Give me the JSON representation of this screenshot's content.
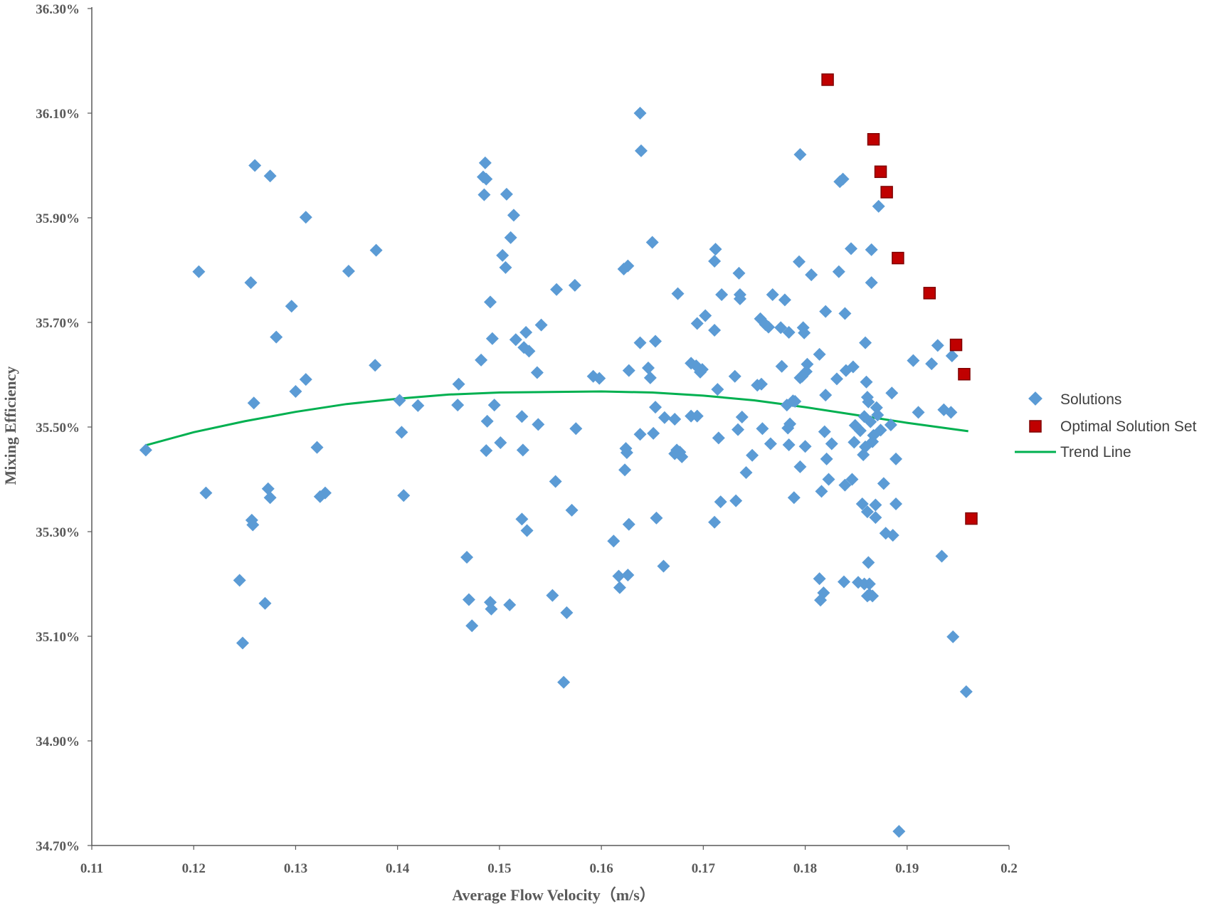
{
  "chart_data": {
    "type": "scatter",
    "xlabel": "Average Flow Velocity（m/s）",
    "ylabel": "Mixing Efficiency",
    "xlim": [
      0.11,
      0.2
    ],
    "ylim": [
      34.7,
      36.3
    ],
    "x_ticks": [
      0.11,
      0.12,
      0.13,
      0.14,
      0.15,
      0.16,
      0.17,
      0.18,
      0.19,
      0.2
    ],
    "x_tick_labels": [
      "0.11",
      "0.12",
      "0.13",
      "0.14",
      "0.15",
      "0.16",
      "0.17",
      "0.18",
      "0.19",
      "0.2"
    ],
    "y_ticks": [
      34.7,
      34.9,
      35.1,
      35.3,
      35.5,
      35.7,
      35.9,
      36.1,
      36.3
    ],
    "y_tick_labels": [
      "34.70%",
      "34.90%",
      "35.10%",
      "35.30%",
      "35.50%",
      "35.70%",
      "35.90%",
      "36.10%",
      "36.30%"
    ],
    "grid": false,
    "legend_position": "right",
    "colors": {
      "solutions": "#5b9bd5",
      "optimal": "#c00000",
      "trend": "#00b050",
      "axis": "#595959"
    },
    "series": [
      {
        "name": "Solutions",
        "marker": "diamond",
        "points": [
          [
            0.1153,
            35.456
          ],
          [
            0.1205,
            35.797
          ],
          [
            0.1212,
            35.374
          ],
          [
            0.1245,
            35.207
          ],
          [
            0.1248,
            35.087
          ],
          [
            0.1256,
            35.776
          ],
          [
            0.1257,
            35.322
          ],
          [
            0.1258,
            35.313
          ],
          [
            0.1259,
            35.546
          ],
          [
            0.126,
            36.0
          ],
          [
            0.127,
            35.163
          ],
          [
            0.1273,
            35.382
          ],
          [
            0.1275,
            35.365
          ],
          [
            0.1275,
            35.98
          ],
          [
            0.1281,
            35.672
          ],
          [
            0.1296,
            35.731
          ],
          [
            0.13,
            35.568
          ],
          [
            0.131,
            35.591
          ],
          [
            0.131,
            35.901
          ],
          [
            0.1321,
            35.461
          ],
          [
            0.1324,
            35.367
          ],
          [
            0.1329,
            35.374
          ],
          [
            0.1352,
            35.798
          ],
          [
            0.1378,
            35.618
          ],
          [
            0.1379,
            35.838
          ],
          [
            0.1402,
            35.551
          ],
          [
            0.1404,
            35.49
          ],
          [
            0.1406,
            35.369
          ],
          [
            0.142,
            35.541
          ],
          [
            0.1459,
            35.542
          ],
          [
            0.146,
            35.582
          ],
          [
            0.1468,
            35.251
          ],
          [
            0.147,
            35.17
          ],
          [
            0.1473,
            35.12
          ],
          [
            0.1482,
            35.628
          ],
          [
            0.1484,
            35.978
          ],
          [
            0.1485,
            35.944
          ],
          [
            0.1486,
            36.005
          ],
          [
            0.1487,
            35.974
          ],
          [
            0.1487,
            35.455
          ],
          [
            0.1488,
            35.511
          ],
          [
            0.1491,
            35.739
          ],
          [
            0.1491,
            35.165
          ],
          [
            0.1492,
            35.152
          ],
          [
            0.1493,
            35.669
          ],
          [
            0.1495,
            35.542
          ],
          [
            0.1501,
            35.47
          ],
          [
            0.1503,
            35.828
          ],
          [
            0.1506,
            35.805
          ],
          [
            0.1507,
            35.945
          ],
          [
            0.151,
            35.16
          ],
          [
            0.1511,
            35.862
          ],
          [
            0.1514,
            35.905
          ],
          [
            0.1516,
            35.667
          ],
          [
            0.1522,
            35.324
          ],
          [
            0.1522,
            35.52
          ],
          [
            0.1523,
            35.456
          ],
          [
            0.1524,
            35.652
          ],
          [
            0.1526,
            35.681
          ],
          [
            0.1527,
            35.302
          ],
          [
            0.1529,
            35.645
          ],
          [
            0.1537,
            35.604
          ],
          [
            0.1538,
            35.505
          ],
          [
            0.1541,
            35.695
          ],
          [
            0.1552,
            35.178
          ],
          [
            0.1555,
            35.396
          ],
          [
            0.1556,
            35.763
          ],
          [
            0.1563,
            35.012
          ],
          [
            0.1566,
            35.145
          ],
          [
            0.1571,
            35.341
          ],
          [
            0.1574,
            35.771
          ],
          [
            0.1575,
            35.497
          ],
          [
            0.1592,
            35.597
          ],
          [
            0.1598,
            35.593
          ],
          [
            0.1612,
            35.282
          ],
          [
            0.1617,
            35.215
          ],
          [
            0.1618,
            35.193
          ],
          [
            0.1622,
            35.802
          ],
          [
            0.1623,
            35.418
          ],
          [
            0.1624,
            35.459
          ],
          [
            0.1625,
            35.451
          ],
          [
            0.1626,
            35.808
          ],
          [
            0.1626,
            35.217
          ],
          [
            0.1627,
            35.314
          ],
          [
            0.1627,
            35.608
          ],
          [
            0.1638,
            35.661
          ],
          [
            0.1638,
            36.1
          ],
          [
            0.1638,
            35.486
          ],
          [
            0.1639,
            36.028
          ],
          [
            0.1646,
            35.613
          ],
          [
            0.1648,
            35.594
          ],
          [
            0.165,
            35.853
          ],
          [
            0.1651,
            35.488
          ],
          [
            0.1653,
            35.538
          ],
          [
            0.1653,
            35.664
          ],
          [
            0.1654,
            35.326
          ],
          [
            0.1661,
            35.234
          ],
          [
            0.1662,
            35.518
          ],
          [
            0.1672,
            35.449
          ],
          [
            0.1672,
            35.515
          ],
          [
            0.1674,
            35.456
          ],
          [
            0.1675,
            35.755
          ],
          [
            0.1677,
            35.452
          ],
          [
            0.1679,
            35.443
          ],
          [
            0.1688,
            35.622
          ],
          [
            0.1688,
            35.521
          ],
          [
            0.1693,
            35.617
          ],
          [
            0.1694,
            35.521
          ],
          [
            0.1694,
            35.698
          ],
          [
            0.1697,
            35.605
          ],
          [
            0.1699,
            35.61
          ],
          [
            0.1702,
            35.713
          ],
          [
            0.1711,
            35.685
          ],
          [
            0.1711,
            35.817
          ],
          [
            0.1711,
            35.318
          ],
          [
            0.1712,
            35.84
          ],
          [
            0.1714,
            35.572
          ],
          [
            0.1715,
            35.479
          ],
          [
            0.1717,
            35.357
          ],
          [
            0.1718,
            35.753
          ],
          [
            0.1731,
            35.597
          ],
          [
            0.1732,
            35.359
          ],
          [
            0.1734,
            35.495
          ],
          [
            0.1735,
            35.794
          ],
          [
            0.1736,
            35.745
          ],
          [
            0.1736,
            35.753
          ],
          [
            0.1738,
            35.519
          ],
          [
            0.1742,
            35.413
          ],
          [
            0.1748,
            35.446
          ],
          [
            0.1753,
            35.58
          ],
          [
            0.1756,
            35.707
          ],
          [
            0.1757,
            35.582
          ],
          [
            0.1758,
            35.497
          ],
          [
            0.1761,
            35.696
          ],
          [
            0.1764,
            35.691
          ],
          [
            0.1766,
            35.468
          ],
          [
            0.1768,
            35.753
          ],
          [
            0.1776,
            35.69
          ],
          [
            0.1777,
            35.616
          ],
          [
            0.178,
            35.743
          ],
          [
            0.1782,
            35.542
          ],
          [
            0.1783,
            35.498
          ],
          [
            0.1784,
            35.466
          ],
          [
            0.1784,
            35.681
          ],
          [
            0.1785,
            35.506
          ],
          [
            0.1788,
            35.55
          ],
          [
            0.1789,
            35.365
          ],
          [
            0.179,
            35.549
          ],
          [
            0.1794,
            35.816
          ],
          [
            0.1795,
            35.594
          ],
          [
            0.1795,
            36.021
          ],
          [
            0.1795,
            35.424
          ],
          [
            0.1797,
            35.597
          ],
          [
            0.1798,
            35.69
          ],
          [
            0.1799,
            35.68
          ],
          [
            0.18,
            35.463
          ],
          [
            0.1801,
            35.606
          ],
          [
            0.1802,
            35.62
          ],
          [
            0.1806,
            35.791
          ],
          [
            0.1814,
            35.639
          ],
          [
            0.1814,
            35.21
          ],
          [
            0.1815,
            35.169
          ],
          [
            0.1816,
            35.377
          ],
          [
            0.1818,
            35.183
          ],
          [
            0.1819,
            35.491
          ],
          [
            0.182,
            35.721
          ],
          [
            0.182,
            35.561
          ],
          [
            0.1821,
            35.439
          ],
          [
            0.1823,
            35.4
          ],
          [
            0.1826,
            35.468
          ],
          [
            0.1831,
            35.592
          ],
          [
            0.1833,
            35.797
          ],
          [
            0.1834,
            35.969
          ],
          [
            0.1837,
            35.974
          ],
          [
            0.1838,
            35.204
          ],
          [
            0.1839,
            35.389
          ],
          [
            0.1839,
            35.717
          ],
          [
            0.184,
            35.608
          ],
          [
            0.1845,
            35.841
          ],
          [
            0.1846,
            35.4
          ],
          [
            0.1847,
            35.615
          ],
          [
            0.1848,
            35.471
          ],
          [
            0.1849,
            35.503
          ],
          [
            0.1852,
            35.203
          ],
          [
            0.1854,
            35.493
          ],
          [
            0.1856,
            35.353
          ],
          [
            0.1857,
            35.447
          ],
          [
            0.1858,
            35.2
          ],
          [
            0.1858,
            35.52
          ],
          [
            0.1859,
            35.462
          ],
          [
            0.1859,
            35.661
          ],
          [
            0.186,
            35.586
          ],
          [
            0.1861,
            35.338
          ],
          [
            0.1861,
            35.557
          ],
          [
            0.1861,
            35.177
          ],
          [
            0.1862,
            35.548
          ],
          [
            0.1862,
            35.241
          ],
          [
            0.1863,
            35.2
          ],
          [
            0.1863,
            35.18
          ],
          [
            0.1864,
            35.51
          ],
          [
            0.1865,
            35.839
          ],
          [
            0.1865,
            35.776
          ],
          [
            0.1866,
            35.472
          ],
          [
            0.1866,
            35.177
          ],
          [
            0.1867,
            35.484
          ],
          [
            0.1869,
            35.351
          ],
          [
            0.1869,
            35.327
          ],
          [
            0.187,
            35.537
          ],
          [
            0.1871,
            35.523
          ],
          [
            0.1872,
            35.922
          ],
          [
            0.1874,
            35.494
          ],
          [
            0.1877,
            35.392
          ],
          [
            0.1879,
            35.297
          ],
          [
            0.1884,
            35.504
          ],
          [
            0.1885,
            35.565
          ],
          [
            0.1886,
            35.293
          ],
          [
            0.1889,
            35.353
          ],
          [
            0.1889,
            35.439
          ],
          [
            0.1892,
            34.727
          ],
          [
            0.1906,
            35.627
          ],
          [
            0.1911,
            35.528
          ],
          [
            0.1924,
            35.621
          ],
          [
            0.193,
            35.656
          ],
          [
            0.1934,
            35.253
          ],
          [
            0.1936,
            35.533
          ],
          [
            0.1943,
            35.528
          ],
          [
            0.1944,
            35.636
          ],
          [
            0.1945,
            35.099
          ],
          [
            0.1958,
            34.994
          ]
        ]
      },
      {
        "name": "Optimal Solution Set",
        "marker": "square",
        "points": [
          [
            0.1822,
            36.164
          ],
          [
            0.1867,
            36.05
          ],
          [
            0.1874,
            35.988
          ],
          [
            0.188,
            35.949
          ],
          [
            0.1891,
            35.823
          ],
          [
            0.1922,
            35.756
          ],
          [
            0.1948,
            35.657
          ],
          [
            0.1956,
            35.601
          ],
          [
            0.1963,
            35.325
          ]
        ]
      },
      {
        "name": "Trend Line",
        "type": "line",
        "points": [
          [
            0.1153,
            35.465
          ],
          [
            0.12,
            35.49
          ],
          [
            0.125,
            35.511
          ],
          [
            0.13,
            35.529
          ],
          [
            0.135,
            35.544
          ],
          [
            0.14,
            35.554
          ],
          [
            0.145,
            35.562
          ],
          [
            0.15,
            35.566
          ],
          [
            0.155,
            35.567
          ],
          [
            0.16,
            35.568
          ],
          [
            0.165,
            35.566
          ],
          [
            0.17,
            35.56
          ],
          [
            0.175,
            35.551
          ],
          [
            0.18,
            35.538
          ],
          [
            0.185,
            35.523
          ],
          [
            0.19,
            35.508
          ],
          [
            0.196,
            35.492
          ]
        ]
      }
    ]
  }
}
